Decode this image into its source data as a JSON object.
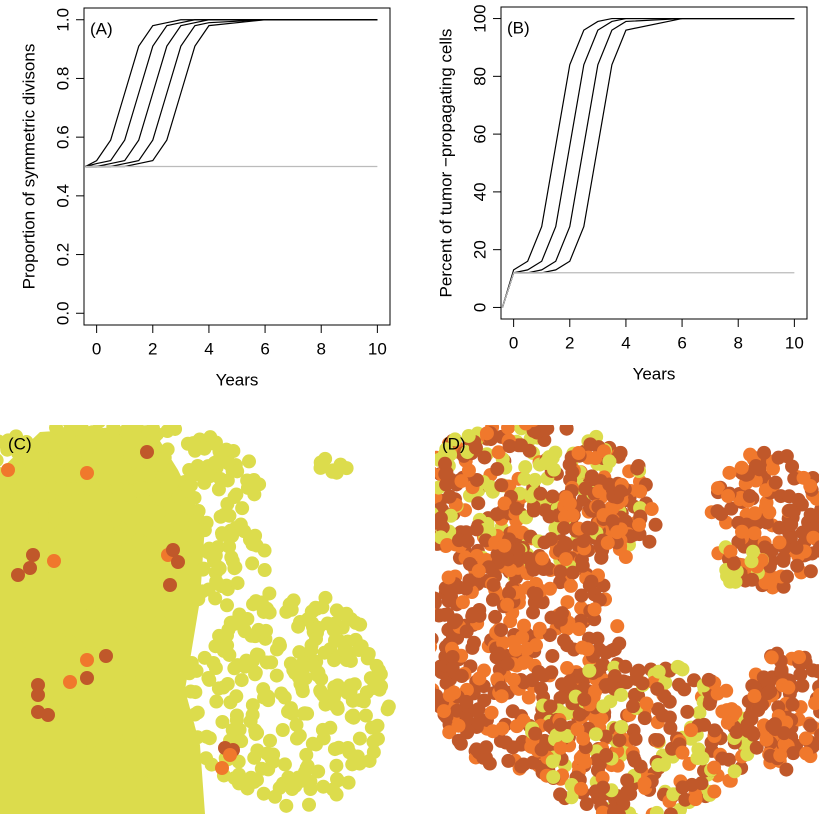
{
  "chart_data": [
    {
      "type": "line",
      "panel_label": "(A)",
      "x_label": "Years",
      "y_label": "Proportion of symmetric divisons",
      "x": [
        -0.4,
        0,
        0.5,
        1,
        1.5,
        2,
        2.5,
        3,
        3.5,
        4,
        6,
        10
      ],
      "series": [
        {
          "color": "#000000",
          "values": [
            0.5,
            0.52,
            0.59,
            0.75,
            0.91,
            0.98,
            0.99,
            1,
            1,
            1,
            1,
            1
          ]
        },
        {
          "color": "#000000",
          "values": [
            0.5,
            0.51,
            0.52,
            0.59,
            0.75,
            0.91,
            0.98,
            0.99,
            1,
            1,
            1,
            1
          ]
        },
        {
          "color": "#000000",
          "values": [
            0.5,
            0.5,
            0.51,
            0.52,
            0.59,
            0.75,
            0.91,
            0.98,
            0.99,
            1,
            1,
            1
          ]
        },
        {
          "color": "#000000",
          "values": [
            0.5,
            0.5,
            0.5,
            0.51,
            0.52,
            0.59,
            0.75,
            0.91,
            0.98,
            0.99,
            1,
            1
          ]
        },
        {
          "color": "#000000",
          "values": [
            0.5,
            0.5,
            0.5,
            0.5,
            0.51,
            0.52,
            0.59,
            0.75,
            0.91,
            0.98,
            1,
            1
          ]
        },
        {
          "color": "#bbbbbb",
          "values": [
            0.5,
            0.5,
            0.5,
            0.5,
            0.5,
            0.5,
            0.5,
            0.5,
            0.5,
            0.5,
            0.5,
            0.5
          ]
        }
      ],
      "xlim": [
        -0.45,
        10.45
      ],
      "xticks": [
        0,
        2,
        4,
        6,
        8,
        10
      ],
      "ylim": [
        -0.04,
        1.04
      ],
      "yticks": [
        {
          "value": 0,
          "label": "0.0"
        },
        {
          "value": 0.2,
          "label": "0.2"
        },
        {
          "value": 0.4,
          "label": "0.4"
        },
        {
          "value": 0.6,
          "label": "0.6"
        },
        {
          "value": 0.8,
          "label": "0.8"
        },
        {
          "value": 1,
          "label": "1.0"
        }
      ]
    },
    {
      "type": "line",
      "panel_label": "(B)",
      "x_label": "Years",
      "y_label": "Percent of tumor −propagating cells",
      "x": [
        -0.4,
        0,
        0.5,
        1,
        1.5,
        2,
        2.5,
        3,
        3.5,
        4,
        6,
        10
      ],
      "series": [
        {
          "color": "#000000",
          "values": [
            0,
            13,
            16,
            28,
            56,
            84,
            96,
            99,
            100,
            100,
            100,
            100
          ]
        },
        {
          "color": "#000000",
          "values": [
            0,
            12,
            13,
            16,
            28,
            56,
            84,
            96,
            99,
            100,
            100,
            100
          ]
        },
        {
          "color": "#000000",
          "values": [
            0,
            12,
            12,
            13,
            16,
            28,
            56,
            84,
            96,
            99,
            100,
            100
          ]
        },
        {
          "color": "#000000",
          "values": [
            0,
            12,
            12,
            12,
            13,
            16,
            28,
            56,
            84,
            96,
            100,
            100
          ]
        },
        {
          "color": "#bbbbbb",
          "values": [
            0,
            12,
            12,
            12,
            12,
            12,
            12,
            12,
            12,
            12,
            12,
            12
          ]
        }
      ],
      "xlim": [
        -0.45,
        10.45
      ],
      "xticks": [
        0,
        2,
        4,
        6,
        8,
        10
      ],
      "ylim": [
        -4,
        104
      ],
      "yticks": [
        0,
        20,
        40,
        60,
        80,
        100
      ]
    },
    {
      "type": "cells",
      "panel_label": "(C)"
    },
    {
      "type": "cells",
      "panel_label": "(D)"
    }
  ]
}
